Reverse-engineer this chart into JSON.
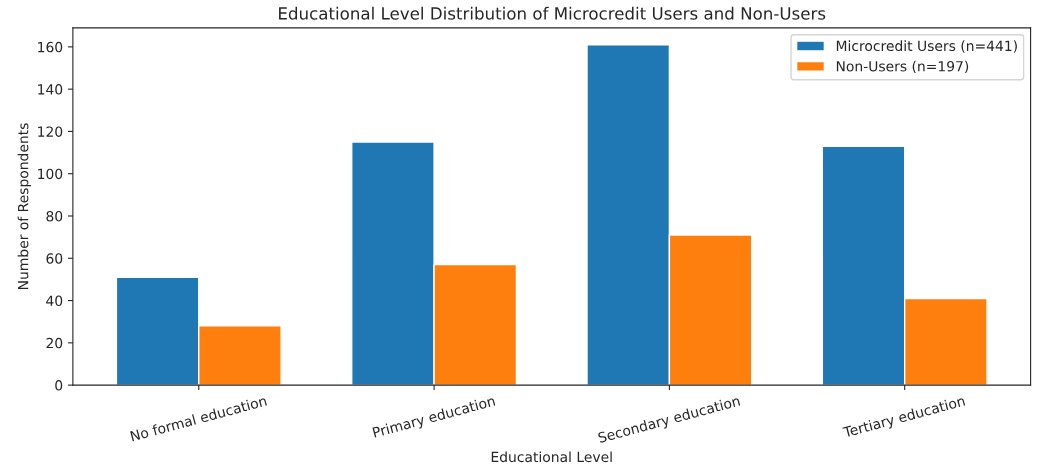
{
  "chart_data": {
    "type": "bar",
    "title": "Educational Level Distribution of Microcredit Users and Non-Users",
    "xlabel": "Educational Level",
    "ylabel": "Number of Respondents",
    "categories": [
      "No formal education",
      "Primary education",
      "Secondary education",
      "Tertiary education"
    ],
    "series": [
      {
        "name": "Microcredit Users (n=441)",
        "color": "#1f77b4",
        "values": [
          51,
          115,
          161,
          113
        ]
      },
      {
        "name": "Non-Users (n=197)",
        "color": "#ff7f0e",
        "values": [
          28,
          57,
          71,
          41
        ]
      }
    ],
    "ylim": [
      0,
      169
    ],
    "yticks": [
      0,
      20,
      40,
      60,
      80,
      100,
      120,
      140,
      160
    ],
    "legend": "top right",
    "grid": false
  }
}
